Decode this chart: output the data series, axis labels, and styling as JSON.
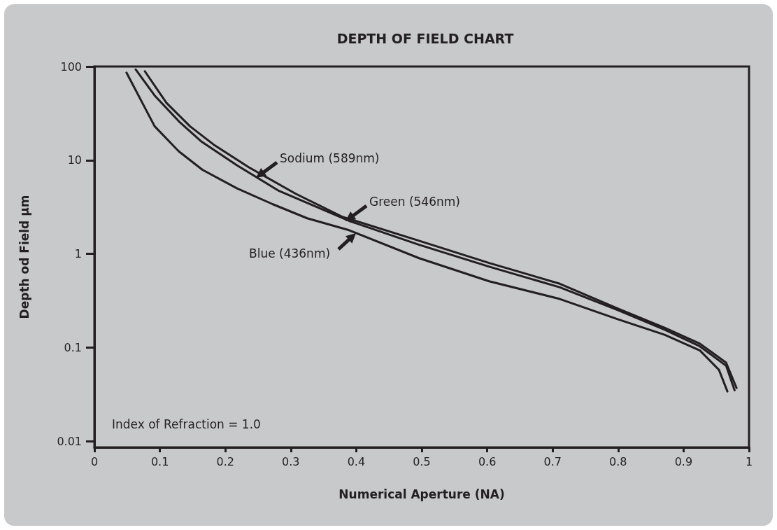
{
  "chart_data": {
    "type": "line",
    "title": "DEPTH OF FIELD CHART",
    "xlabel": "Numerical Aperture (NA)",
    "ylabel": "Depth od Field µm",
    "annotations": [
      "Index of Refraction = 1.0"
    ],
    "log": "y",
    "grid": false,
    "legend": false,
    "marker": "none",
    "line_style": "solid",
    "xlim": [
      0,
      1
    ],
    "xticks": [
      0,
      0.1,
      0.2,
      0.3,
      0.4,
      0.5,
      0.6,
      0.7,
      0.8,
      0.9,
      1
    ],
    "ylim": [
      0.0086,
      100
    ],
    "yticks": [
      0.01,
      0.1,
      1,
      10,
      100
    ],
    "series": [
      {
        "name": "Sodium (589nm)",
        "color": "#231f20",
        "x": [
          0.077,
          0.11,
          0.146,
          0.182,
          0.236,
          0.307,
          0.378,
          0.496,
          0.603,
          0.711,
          0.8,
          0.871,
          0.925,
          0.965,
          0.981
        ],
        "values": [
          89,
          41,
          23,
          14.7,
          8.4,
          4.4,
          2.5,
          1.38,
          0.8,
          0.48,
          0.26,
          0.163,
          0.11,
          0.069,
          0.037
        ]
      },
      {
        "name": "Green (546nm)",
        "color": "#231f20",
        "x": [
          0.063,
          0.092,
          0.129,
          0.164,
          0.218,
          0.282,
          0.389,
          0.496,
          0.603,
          0.711,
          0.8,
          0.871,
          0.925,
          0.965,
          0.978
        ],
        "values": [
          93,
          49,
          26,
          15.7,
          8.8,
          4.7,
          2.25,
          1.25,
          0.73,
          0.44,
          0.25,
          0.155,
          0.103,
          0.064,
          0.035
        ]
      },
      {
        "name": "Blue (436nm)",
        "color": "#231f20",
        "x": [
          0.049,
          0.092,
          0.129,
          0.165,
          0.218,
          0.272,
          0.325,
          0.389,
          0.496,
          0.603,
          0.711,
          0.8,
          0.871,
          0.925,
          0.954,
          0.967
        ],
        "values": [
          86,
          23,
          12.4,
          7.9,
          5.0,
          3.4,
          2.4,
          1.79,
          0.9,
          0.51,
          0.33,
          0.2,
          0.137,
          0.093,
          0.058,
          0.034
        ]
      }
    ]
  }
}
